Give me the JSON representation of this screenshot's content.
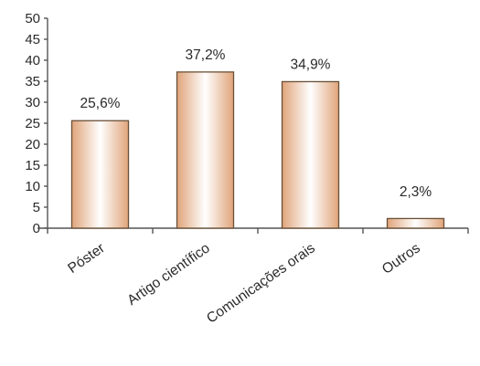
{
  "chart_data": {
    "type": "bar",
    "categories": [
      "Póster",
      "Artigo científico",
      "Comunicações orais",
      "Outros"
    ],
    "values": [
      25.6,
      37.2,
      34.9,
      2.3
    ],
    "data_labels": [
      "25,6%",
      "37,2%",
      "34,9%",
      "2,3%"
    ],
    "title": "",
    "xlabel": "",
    "ylabel": "",
    "ylim": [
      0,
      50
    ],
    "yticks": [
      "0",
      "5",
      "10",
      "15",
      "20",
      "25",
      "30",
      "35",
      "40",
      "45",
      "50"
    ],
    "grid": false,
    "legend": "none",
    "bar_gradient": {
      "edge": "#e0a47a",
      "center": "#ffffff"
    }
  }
}
